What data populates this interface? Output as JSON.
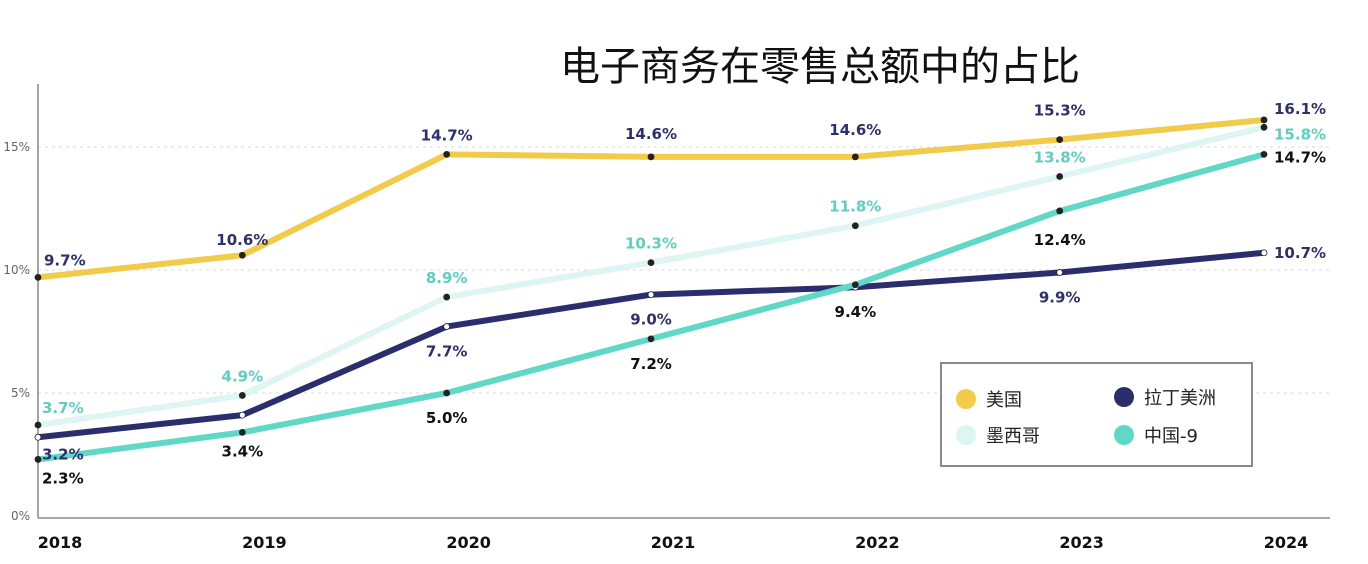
{
  "chart_data": {
    "type": "line",
    "title": "电子商务在零售总额中的占比",
    "xlabel": "",
    "ylabel": "",
    "x": [
      "2018",
      "2019",
      "2020",
      "2021",
      "2022",
      "2023",
      "2024"
    ],
    "yticks": [
      "0%",
      "5%",
      "10%",
      "15%"
    ],
    "ytick_values": [
      0,
      5,
      10,
      15
    ],
    "ylim": [
      0,
      17
    ],
    "grid": "horizontal dashed",
    "legend_position": "bottom-right",
    "series": [
      {
        "name": "美国",
        "color": "#f3cb4a",
        "label_color": "#2e2f6e",
        "values": [
          9.7,
          10.6,
          14.7,
          14.6,
          14.6,
          15.3,
          16.1
        ],
        "labels": [
          "9.7%",
          "10.6%",
          "14.7%",
          "14.6%",
          "14.6%",
          "15.3%",
          "16.1%"
        ]
      },
      {
        "name": "墨西哥",
        "color": "#ddf5f3",
        "label_color": "#5ccfbf",
        "values": [
          3.7,
          4.9,
          8.9,
          10.3,
          11.8,
          13.8,
          15.8
        ],
        "labels": [
          "3.7%",
          "4.9%",
          "8.9%",
          "10.3%",
          "11.8%",
          "13.8%",
          "15.8%"
        ]
      },
      {
        "name": "拉丁美洲",
        "color": "#2b2e6c",
        "label_color": "#2e2f6e",
        "values": [
          3.2,
          4.1,
          7.7,
          9.0,
          9.3,
          9.9,
          10.7
        ],
        "labels": [
          "3.2%",
          null,
          "7.7%",
          "9.0%",
          null,
          "9.9%",
          "10.7%"
        ]
      },
      {
        "name": "中国-9",
        "color": "#5fd8c7",
        "label_color": "#111111",
        "values": [
          2.3,
          3.4,
          5.0,
          7.2,
          9.4,
          12.4,
          14.7
        ],
        "labels": [
          "2.3%",
          "3.4%",
          "5.0%",
          "7.2%",
          "9.4%",
          "12.4%",
          "14.7%"
        ]
      }
    ]
  }
}
